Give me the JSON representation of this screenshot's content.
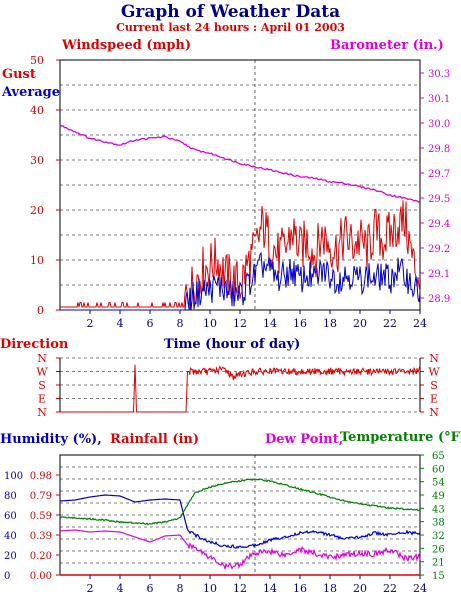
{
  "header": {
    "title": "Graph of Weather Data",
    "subtitle": "Current last 24 hours : April 01 2003"
  },
  "colors": {
    "red": "#e00000",
    "blue": "#0000cc",
    "magenta": "#e000e0",
    "green": "#008000",
    "navy": "#000088",
    "axis": "#000000"
  },
  "chart_data": [
    {
      "type": "line",
      "ylabel": "Windspeed (mph)",
      "y2label": "Barometer (in.)",
      "xlabel": "Time (hour of day)",
      "xlim": [
        0,
        24
      ],
      "ylim": [
        0,
        50
      ],
      "y2lim": [
        28.85,
        30.35
      ],
      "xticks": [
        "2",
        "4",
        "6",
        "8",
        "10",
        "12",
        "14",
        "16",
        "18",
        "20",
        "22",
        "24"
      ],
      "yticks": [
        "0",
        "10",
        "20",
        "30",
        "40",
        "50"
      ],
      "y2ticks": [
        "28.9",
        "29.1",
        "29.2",
        "29.4",
        "29.5",
        "29.7",
        "29.8",
        "30.0",
        "30.1",
        "30.3"
      ],
      "grid": true,
      "series": [
        {
          "name": "Gust",
          "axis": "left",
          "x": [
            0,
            2,
            4,
            5,
            6,
            7,
            8,
            8.5,
            9,
            9.5,
            10,
            10.5,
            11,
            11.5,
            12,
            12.5,
            13,
            13.5,
            14,
            14.5,
            15,
            15.5,
            16,
            16.5,
            17,
            17.5,
            18,
            18.5,
            19,
            19.5,
            20,
            20.5,
            21,
            21.5,
            22,
            22.5,
            23,
            23.5,
            24
          ],
          "y": [
            1,
            1,
            1,
            2,
            1,
            1,
            1,
            3,
            6,
            8,
            9,
            10,
            7,
            6,
            5,
            9,
            12,
            17,
            14,
            11,
            12,
            16,
            12,
            14,
            11,
            15,
            13,
            12,
            15,
            13,
            14,
            12,
            16,
            14,
            15,
            17,
            18,
            10,
            6
          ]
        },
        {
          "name": "Average",
          "axis": "left",
          "x": [
            0,
            2,
            4,
            6,
            8,
            8.5,
            9,
            9.5,
            10,
            10.5,
            11,
            11.5,
            12,
            12.5,
            13,
            13.5,
            14,
            14.5,
            15,
            15.5,
            16,
            16.5,
            17,
            17.5,
            18,
            18.5,
            19,
            19.5,
            20,
            20.5,
            21,
            21.5,
            22,
            22.5,
            23,
            23.5,
            24
          ],
          "y": [
            0,
            0,
            0,
            0,
            0,
            2,
            3,
            4,
            4,
            5,
            4,
            3,
            3,
            5,
            7,
            9,
            8,
            6,
            7,
            8,
            6,
            7,
            6,
            8,
            7,
            6,
            7,
            7,
            6,
            7,
            6,
            7,
            6,
            8,
            7,
            5,
            3
          ]
        },
        {
          "name": "Barometer",
          "axis": "right",
          "x": [
            0,
            1,
            2,
            3,
            4,
            5,
            6,
            7,
            8,
            9,
            10,
            11,
            12,
            13,
            14,
            15,
            16,
            17,
            18,
            19,
            20,
            21,
            22,
            23,
            24
          ],
          "y": [
            29.96,
            29.92,
            29.88,
            29.86,
            29.84,
            29.87,
            29.88,
            29.89,
            29.86,
            29.81,
            29.79,
            29.76,
            29.73,
            29.71,
            29.69,
            29.67,
            29.65,
            29.64,
            29.62,
            29.61,
            29.59,
            29.57,
            29.54,
            29.52,
            29.5
          ]
        }
      ]
    },
    {
      "type": "line",
      "title": "Direction",
      "xlim": [
        0,
        24
      ],
      "yticks": [
        "N",
        "W",
        "S",
        "E",
        "N"
      ],
      "series": [
        {
          "name": "Direction",
          "x": [
            0,
            4.9,
            5,
            5.1,
            5.2,
            8.4,
            8.5,
            9,
            10,
            11,
            11.5,
            12,
            13,
            14,
            16,
            18,
            20,
            22,
            24
          ],
          "y": [
            0,
            0,
            3.5,
            0,
            0,
            0,
            3,
            3,
            3,
            3.2,
            2.6,
            2.8,
            3,
            3,
            3,
            3,
            3,
            3,
            3
          ]
        }
      ]
    },
    {
      "type": "line",
      "xlim": [
        0,
        24
      ],
      "ylim": [
        0,
        120
      ],
      "yticks": [
        "0",
        "20",
        "40",
        "60",
        "80",
        "100"
      ],
      "rain_ticks": [
        "0.00",
        "0.20",
        "0.39",
        "0.59",
        "0.79",
        "0.98"
      ],
      "temp_ticks": [
        "15",
        "21",
        "26",
        "32",
        "38",
        "43",
        "49",
        "54",
        "60",
        "65"
      ],
      "xticks": [
        "2",
        "4",
        "6",
        "8",
        "10",
        "12",
        "14",
        "16",
        "18",
        "20",
        "22",
        "24"
      ],
      "grid": true,
      "series": [
        {
          "name": "Humidity (%)",
          "x": [
            0,
            1,
            2,
            3,
            4,
            5,
            6,
            7,
            8,
            8.5,
            9,
            10,
            11,
            12,
            13,
            14,
            15,
            16,
            17,
            18,
            19,
            20,
            21,
            22,
            23,
            24
          ],
          "y": [
            74,
            75,
            78,
            80,
            79,
            73,
            75,
            76,
            75,
            45,
            40,
            33,
            29,
            28,
            30,
            35,
            38,
            42,
            44,
            40,
            36,
            38,
            42,
            40,
            43,
            41
          ]
        },
        {
          "name": "Rainfall (in)",
          "x": [
            0,
            24
          ],
          "y": [
            0,
            0
          ]
        },
        {
          "name": "Dew Point",
          "x": [
            0,
            1,
            2,
            3,
            4,
            5,
            6,
            7,
            8,
            8.5,
            9,
            10,
            11,
            12,
            13,
            14,
            15,
            16,
            17,
            18,
            19,
            20,
            21,
            22,
            23,
            24
          ],
          "y": [
            44,
            45,
            43,
            44,
            43,
            38,
            33,
            39,
            40,
            30,
            28,
            18,
            8,
            11,
            22,
            24,
            20,
            26,
            21,
            18,
            20,
            22,
            21,
            25,
            17,
            18
          ]
        },
        {
          "name": "Temperature",
          "x": [
            0,
            1,
            2,
            3,
            4,
            5,
            6,
            7,
            8,
            8.5,
            9,
            10,
            11,
            12,
            13,
            14,
            15,
            16,
            17,
            18,
            19,
            20,
            21,
            22,
            23,
            24
          ],
          "y": [
            58,
            57,
            56,
            55,
            53,
            52,
            51,
            53,
            57,
            70,
            82,
            88,
            92,
            94,
            96,
            94,
            90,
            86,
            82,
            78,
            74,
            71,
            69,
            67,
            66,
            65
          ]
        }
      ]
    }
  ],
  "labels": {
    "windspeed": "Windspeed (mph)",
    "barometer": "Barometer (in.)",
    "gust": "Gust",
    "average": "Average",
    "time": "Time (hour of day)",
    "direction": "Direction",
    "humidity": "Humidity (%),",
    "rainfall": "Rainfall (in)",
    "dewpoint": "Dew Point,",
    "temperature": "Temperature (°F)"
  }
}
